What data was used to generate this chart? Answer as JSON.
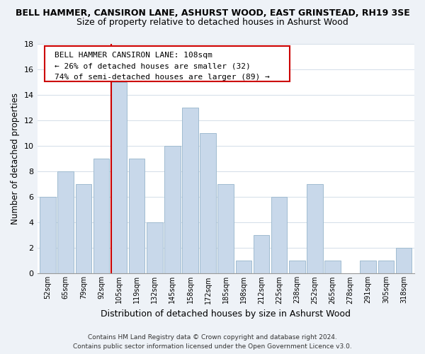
{
  "title": "BELL HAMMER, CANSIRON LANE, ASHURST WOOD, EAST GRINSTEAD, RH19 3SE",
  "subtitle": "Size of property relative to detached houses in Ashurst Wood",
  "xlabel": "Distribution of detached houses by size in Ashurst Wood",
  "ylabel": "Number of detached properties",
  "bin_labels": [
    "52sqm",
    "65sqm",
    "79sqm",
    "92sqm",
    "105sqm",
    "119sqm",
    "132sqm",
    "145sqm",
    "158sqm",
    "172sqm",
    "185sqm",
    "198sqm",
    "212sqm",
    "225sqm",
    "238sqm",
    "252sqm",
    "265sqm",
    "278sqm",
    "291sqm",
    "305sqm",
    "318sqm"
  ],
  "bar_values": [
    6,
    8,
    7,
    9,
    15,
    9,
    4,
    10,
    13,
    11,
    7,
    1,
    3,
    6,
    1,
    7,
    1,
    0,
    1,
    1,
    2
  ],
  "bar_color": "#c8d8ea",
  "bar_edge_color": "#a0bcd0",
  "highlight_bar_index": 4,
  "highlight_line_color": "#cc0000",
  "ylim": [
    0,
    18
  ],
  "yticks": [
    0,
    2,
    4,
    6,
    8,
    10,
    12,
    14,
    16,
    18
  ],
  "annotation_title": "BELL HAMMER CANSIRON LANE: 108sqm",
  "annotation_line1": "← 26% of detached houses are smaller (32)",
  "annotation_line2": "74% of semi-detached houses are larger (89) →",
  "footer_line1": "Contains HM Land Registry data © Crown copyright and database right 2024.",
  "footer_line2": "Contains public sector information licensed under the Open Government Licence v3.0.",
  "bg_color": "#eef2f7",
  "plot_bg_color": "#ffffff",
  "title_fontsize": 9,
  "subtitle_fontsize": 9
}
